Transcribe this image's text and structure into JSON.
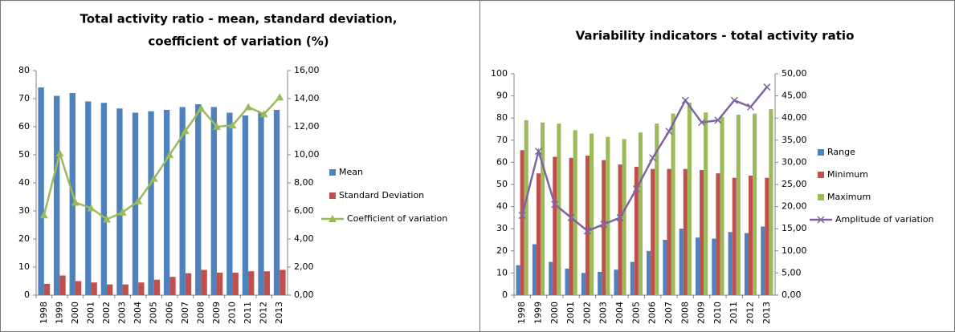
{
  "chart_data": [
    {
      "type": "combo",
      "title": [
        "Total activity ratio - mean, standard deviation,",
        "coefficient of variation (%)"
      ],
      "categories": [
        "1998",
        "1999",
        "2000",
        "2001",
        "2002",
        "2003",
        "2004",
        "2005",
        "2006",
        "2007",
        "2008",
        "2009",
        "2010",
        "2011",
        "2012",
        "2013"
      ],
      "series": [
        {
          "name": "Mean",
          "type": "bar",
          "color": "#4f81bd",
          "values": [
            74,
            71,
            72,
            69,
            68.5,
            66.5,
            65,
            65.5,
            66,
            67,
            68,
            67,
            65,
            64,
            65,
            66
          ]
        },
        {
          "name": "Standard Deviation",
          "type": "bar",
          "color": "#c0504d",
          "values": [
            4,
            7,
            5,
            4.5,
            3.8,
            3.8,
            4.5,
            5.5,
            6.5,
            7.8,
            9,
            8,
            8,
            8.5,
            8.5,
            9
          ]
        },
        {
          "name": "Coefficient of variation",
          "type": "line",
          "marker": "triangle",
          "axis": "y2",
          "color": "#9bbb59",
          "values": [
            5.7,
            10.1,
            6.6,
            6.2,
            5.4,
            5.9,
            6.7,
            8.3,
            10,
            11.7,
            13.3,
            12,
            12.1,
            13.4,
            12.9,
            14.1
          ]
        }
      ],
      "ylim": [
        0,
        80
      ],
      "yticks": [
        0,
        10,
        20,
        30,
        40,
        50,
        60,
        70,
        80
      ],
      "y2lim": [
        0,
        16
      ],
      "y2ticks": [
        {
          "value": 0,
          "label": "0,00"
        },
        {
          "value": 2,
          "label": "2,00"
        },
        {
          "value": 4,
          "label": "4,00"
        },
        {
          "value": 6,
          "label": "6,00"
        },
        {
          "value": 8,
          "label": "8,00"
        },
        {
          "value": 10,
          "label": "10,00"
        },
        {
          "value": 12,
          "label": "12,00"
        },
        {
          "value": 14,
          "label": "14,00"
        },
        {
          "value": 16,
          "label": "16,00"
        }
      ],
      "grid": false,
      "legend": "right"
    },
    {
      "type": "combo",
      "title": [
        "Variability indicators  - total activity ratio"
      ],
      "categories": [
        "1998",
        "1999",
        "2000",
        "2001",
        "2002",
        "2003",
        "2004",
        "2005",
        "2006",
        "2007",
        "2008",
        "2009",
        "2010",
        "2011",
        "2012",
        "2013"
      ],
      "series": [
        {
          "name": "Range",
          "type": "bar",
          "color": "#4f81bd",
          "values": [
            13.5,
            23,
            15,
            12,
            10,
            10.5,
            11.5,
            15,
            20,
            25,
            30,
            26,
            25.5,
            28.5,
            28,
            31
          ]
        },
        {
          "name": "Minimum",
          "type": "bar",
          "color": "#c0504d",
          "values": [
            65.5,
            55,
            62.5,
            62,
            63,
            61,
            59,
            58,
            57,
            57,
            57,
            56.5,
            55,
            53,
            54,
            53
          ]
        },
        {
          "name": "Maximum",
          "type": "bar",
          "color": "#9bbb59",
          "values": [
            79,
            78,
            77.5,
            74.5,
            73,
            71.5,
            70.5,
            73.5,
            77.5,
            82,
            87,
            82.5,
            80.5,
            81.5,
            82,
            84
          ]
        },
        {
          "name": "Amplitude of variation",
          "type": "line",
          "marker": "x",
          "axis": "y2",
          "color": "#8064a2",
          "values": [
            18,
            32.5,
            20.5,
            17.5,
            14.5,
            16,
            17.5,
            24,
            31,
            37,
            44,
            39,
            39.5,
            44,
            42.5,
            47
          ]
        }
      ],
      "ylim": [
        0,
        100
      ],
      "yticks": [
        0,
        10,
        20,
        30,
        40,
        50,
        60,
        70,
        80,
        90,
        100
      ],
      "y2lim": [
        0,
        50
      ],
      "y2ticks": [
        {
          "value": 0,
          "label": "0,00"
        },
        {
          "value": 5,
          "label": "5,00"
        },
        {
          "value": 10,
          "label": "10,00"
        },
        {
          "value": 15,
          "label": "15,00"
        },
        {
          "value": 20,
          "label": "20,00"
        },
        {
          "value": 25,
          "label": "25,00"
        },
        {
          "value": 30,
          "label": "30,00"
        },
        {
          "value": 35,
          "label": "35,00"
        },
        {
          "value": 40,
          "label": "40,00"
        },
        {
          "value": 45,
          "label": "45,00"
        },
        {
          "value": 50,
          "label": "50,00"
        }
      ],
      "grid": false,
      "legend": "right"
    }
  ]
}
